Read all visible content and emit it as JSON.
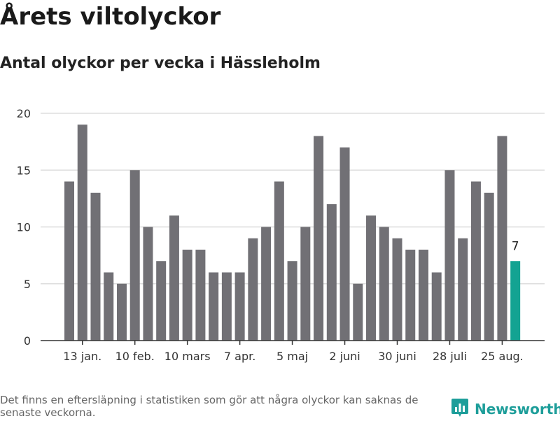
{
  "header": {
    "title": "Årets viltolyckor",
    "subtitle": "Antal olyckor per vecka i Hässleholm"
  },
  "footer": {
    "note": "Det finns en eftersläpning i statistiken som gör att några olyckor kan saknas de senaste veckorna.",
    "brand": "Newsworthy",
    "brand_icon": "bar-chart-logo-icon",
    "brand_color": "#1e9e9a"
  },
  "chart_data": {
    "type": "bar",
    "title": "Årets viltolyckor",
    "subtitle": "Antal olyckor per vecka i Hässleholm",
    "xlabel": "",
    "ylabel": "",
    "ylim": [
      0,
      20
    ],
    "yticks": [
      0,
      5,
      10,
      15,
      20
    ],
    "grid": true,
    "values": [
      14,
      19,
      13,
      6,
      5,
      15,
      10,
      7,
      11,
      8,
      8,
      6,
      6,
      6,
      9,
      10,
      14,
      7,
      10,
      18,
      12,
      17,
      5,
      11,
      10,
      9,
      8,
      8,
      6,
      15,
      9,
      14,
      13,
      18,
      7
    ],
    "xtick_labels": [
      {
        "label": "13 jan.",
        "index": 1
      },
      {
        "label": "10 feb.",
        "index": 5
      },
      {
        "label": "10 mars",
        "index": 9
      },
      {
        "label": "7 apr.",
        "index": 13
      },
      {
        "label": "5 maj",
        "index": 17
      },
      {
        "label": "2 juni",
        "index": 21
      },
      {
        "label": "30 juni",
        "index": 25
      },
      {
        "label": "28 juli",
        "index": 29
      },
      {
        "label": "25 aug.",
        "index": 33
      }
    ],
    "highlight": {
      "index": 34,
      "label": "7"
    },
    "colors": {
      "bar": "#717075",
      "highlight": "#13a392",
      "grid": "#dddddd"
    }
  }
}
